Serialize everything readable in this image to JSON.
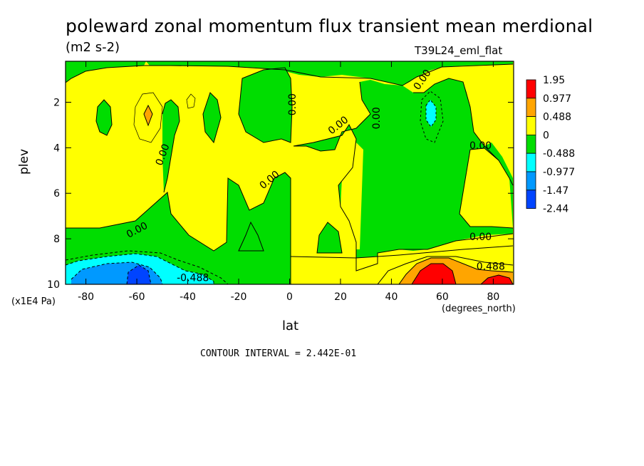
{
  "colors": {
    "level_1.95": "#ff0000",
    "level_0.977": "#ffa500",
    "level_0.488": "#ffff00",
    "level_0": "#00dd00",
    "level_-0.488": "#00ffff",
    "level_-0.977": "#0099ff",
    "level_-1.47": "#0044ff"
  },
  "chart_data": {
    "type": "contour",
    "title": "poleward zonal momentum flux transient mean merdional",
    "subtitle": "(m2 s-2)",
    "dataset_label": "T39L24_eml_flat",
    "xlabel": "lat",
    "x_units": "(degrees_north)",
    "ylabel": "plev",
    "y_units": "(x1E4 Pa)",
    "xlim": [
      -88,
      88
    ],
    "ylim": [
      10,
      0.2
    ],
    "x_ticks": [
      -80,
      -60,
      -40,
      -20,
      0,
      20,
      40,
      60,
      80
    ],
    "x_tick_labels": [
      "-80",
      "-60",
      "-40",
      "-20",
      "0",
      "20",
      "40",
      "60",
      "80"
    ],
    "y_ticks": [
      2,
      4,
      6,
      8,
      10
    ],
    "y_tick_labels": [
      "2",
      "4",
      "6",
      "8",
      "10"
    ],
    "contour_interval_text": "CONTOUR INTERVAL = 2.442E-01",
    "legend_levels": [
      "1.95",
      "0.977",
      "0.488",
      "0",
      "-0.488",
      "-0.977",
      "-1.47",
      "-2.44"
    ],
    "legend_placement": "right",
    "contour_labels": [
      {
        "text": "0.00",
        "lat": -50,
        "plev": 4.3,
        "angle": -70
      },
      {
        "text": "0.00",
        "lat": -60,
        "plev": 7.6,
        "angle": -28
      },
      {
        "text": "0.00",
        "lat": -8,
        "plev": 5.4,
        "angle": -40
      },
      {
        "text": "0.00",
        "lat": 1,
        "plev": 2.1,
        "angle": -90
      },
      {
        "text": "0.00",
        "lat": 19,
        "plev": 3.0,
        "angle": -38
      },
      {
        "text": "0.00",
        "lat": 34,
        "plev": 2.7,
        "angle": -90
      },
      {
        "text": "0.00",
        "lat": 52,
        "plev": 1.0,
        "angle": -55
      },
      {
        "text": "0.00",
        "lat": 75,
        "plev": 3.9,
        "angle": 0
      },
      {
        "text": "0.00",
        "lat": 75,
        "plev": 7.9,
        "angle": 0
      },
      {
        "text": "0.488",
        "lat": 79,
        "plev": 9.2,
        "angle": 0
      },
      {
        "text": "-0.488",
        "lat": -38,
        "plev": 9.7,
        "angle": 0
      }
    ]
  }
}
